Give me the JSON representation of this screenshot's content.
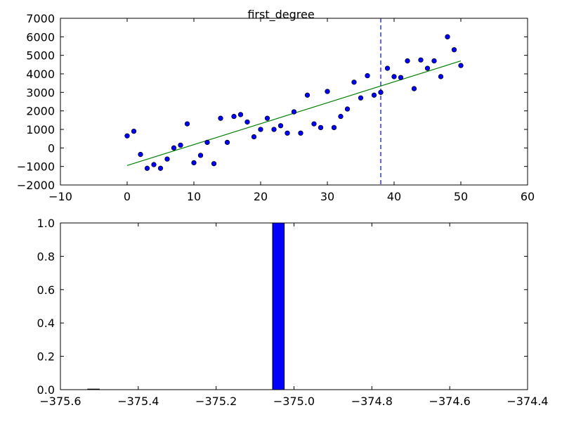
{
  "figure": {
    "title": "first_degree"
  },
  "colors": {
    "points": "#0000ff",
    "fit_line": "#008000",
    "vline": "#0000ff",
    "bars": "#0000ff",
    "axes": "#000000",
    "background": "#ffffff"
  },
  "chart_data": [
    {
      "type": "scatter",
      "title": "first_degree",
      "xlim": [
        -10,
        60
      ],
      "ylim": [
        -2000,
        7000
      ],
      "xticks": [
        -10,
        0,
        10,
        20,
        30,
        40,
        50,
        60
      ],
      "yticks": [
        -2000,
        -1000,
        0,
        1000,
        2000,
        3000,
        4000,
        5000,
        6000,
        7000
      ],
      "grid": false,
      "series": [
        {
          "kind": "scatter",
          "x": [
            0,
            1,
            2,
            3,
            4,
            5,
            6,
            7,
            8,
            9,
            10,
            11,
            12,
            13,
            14,
            15,
            16,
            17,
            18,
            19,
            20,
            21,
            22,
            23,
            24,
            25,
            26,
            27,
            28,
            29,
            30,
            31,
            32,
            33,
            34,
            35,
            36,
            37,
            38,
            39,
            40,
            41,
            42,
            43,
            44,
            45,
            46,
            47,
            48,
            49,
            50
          ],
          "y": [
            650,
            900,
            -350,
            -1100,
            -900,
            -1100,
            -600,
            0,
            150,
            1300,
            -800,
            -400,
            300,
            -850,
            1600,
            300,
            1700,
            1800,
            1400,
            600,
            1000,
            1600,
            1000,
            1200,
            800,
            1950,
            800,
            2850,
            1300,
            1100,
            3050,
            1100,
            1700,
            2100,
            3550,
            2700,
            3900,
            2850,
            3000,
            4300,
            3850,
            3800,
            4700,
            3200,
            4750,
            4300,
            4700,
            3850,
            6000,
            5300,
            4450
          ]
        },
        {
          "kind": "line",
          "x": [
            0,
            50
          ],
          "y": [
            -950,
            4700
          ]
        }
      ],
      "vline": {
        "x": 38,
        "style": "dashed"
      }
    },
    {
      "type": "bar",
      "xlim": [
        -375.6,
        -374.4
      ],
      "ylim": [
        0.0,
        1.0
      ],
      "xticks": [
        -375.6,
        -375.4,
        -375.2,
        -375.0,
        -374.8,
        -374.6,
        -374.4
      ],
      "xtick_labels": [
        "−375.6",
        "−375.4",
        "−375.2",
        "−375.0",
        "−374.8",
        "−374.6",
        "−374.4"
      ],
      "yticks": [
        0.0,
        0.2,
        0.4,
        0.6,
        0.8,
        1.0
      ],
      "ytick_labels": [
        "0.0",
        "0.2",
        "0.4",
        "0.6",
        "0.8",
        "1.0"
      ],
      "grid": false,
      "bars": [
        {
          "x0": -375.53,
          "x1": -375.5,
          "value": 0.0
        },
        {
          "x0": -375.055,
          "x1": -375.025,
          "value": 1.0
        }
      ]
    }
  ]
}
